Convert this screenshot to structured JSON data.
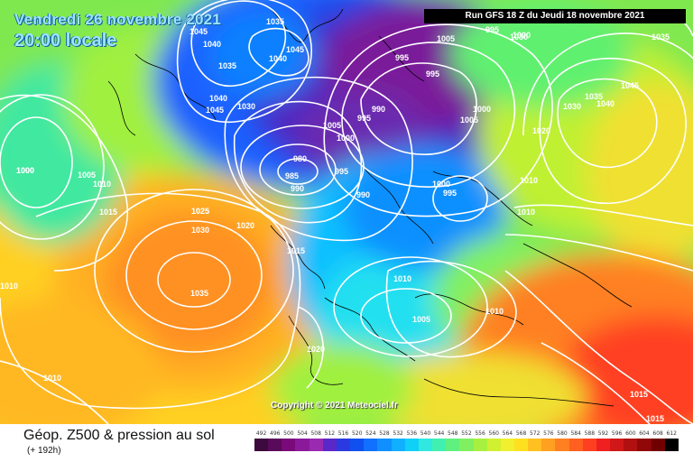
{
  "header": {
    "date": "Vendredi 26 novembre 2021",
    "time": "20:00 locale",
    "run": "Run GFS 18 Z du Jeudi 18 novembre 2021"
  },
  "copyright": "Copyright © 2021 Meteociel.fr",
  "footer": {
    "product": "Géop. Z500 & pression au sol",
    "lead": "(+ 192h)"
  },
  "scale": {
    "labels": [
      "492",
      "496",
      "500",
      "504",
      "508",
      "512",
      "516",
      "520",
      "524",
      "528",
      "532",
      "536",
      "540",
      "544",
      "548",
      "552",
      "556",
      "560",
      "564",
      "568",
      "572",
      "576",
      "580",
      "584",
      "588",
      "592",
      "596",
      "600",
      "604",
      "608",
      "612"
    ],
    "colors": [
      "#3c0a3c",
      "#5a0a5a",
      "#7a0a7a",
      "#8b1a9b",
      "#9a2ab0",
      "#5a28c8",
      "#2a3ae0",
      "#1050f0",
      "#1070ff",
      "#1090ff",
      "#10b0ff",
      "#10d0f8",
      "#30e8e0",
      "#40f0b0",
      "#60f080",
      "#80f060",
      "#a8f040",
      "#d0f030",
      "#f0f030",
      "#ffe020",
      "#ffc020",
      "#ffa020",
      "#ff8020",
      "#ff6020",
      "#ff4020",
      "#f02020",
      "#d01818",
      "#b01010",
      "#900808",
      "#700000",
      "#000000"
    ]
  },
  "pressure_labels": [
    "1045",
    "1040",
    "1035",
    "1030",
    "1040",
    "1045",
    "1035",
    "1040",
    "1045",
    "1030",
    "995",
    "995",
    "1005",
    "1000",
    "995",
    "990",
    "995",
    "1005",
    "1000",
    "980",
    "985",
    "990",
    "995",
    "990",
    "1000",
    "995",
    "1000",
    "1020",
    "1010",
    "1005",
    "1010",
    "1000",
    "1035",
    "1045",
    "1030",
    "1040",
    "1035",
    "1025",
    "1000",
    "1005",
    "1010",
    "1015",
    "1025",
    "1030",
    "1020",
    "1035",
    "1015",
    "1010",
    "1020",
    "1010",
    "1010",
    "1005",
    "1010",
    "1015",
    "1015"
  ],
  "colors": {
    "run_bg": "#000000",
    "title": "#9fe3ff",
    "isobar": "#ffffff",
    "coast": "#000000"
  }
}
